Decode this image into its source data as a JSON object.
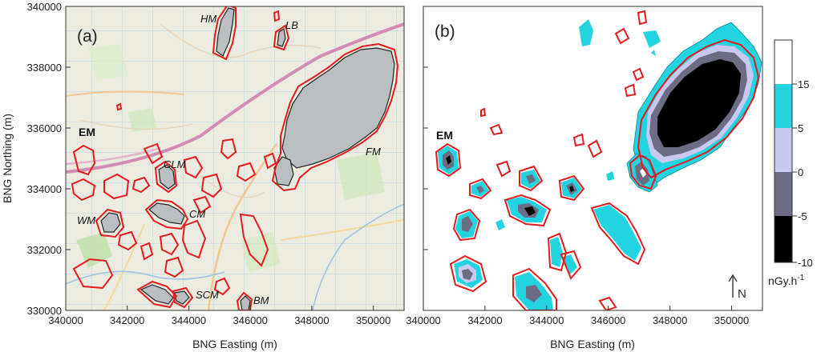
{
  "axes": {
    "x_label": "BNG Easting (m)",
    "y_label": "BNG Northing (m)",
    "x_ticks": [
      "340000",
      "342000",
      "344000",
      "346000",
      "348000",
      "350000"
    ],
    "y_ticks": [
      "330000",
      "332000",
      "334000",
      "336000",
      "338000",
      "340000"
    ]
  },
  "panels": {
    "a": {
      "label": "(a)"
    },
    "b": {
      "label": "(b)"
    }
  },
  "sites_a": {
    "HM": "HM",
    "LB": "LB",
    "EM": "EM",
    "FM": "FM",
    "CLM": "CLM",
    "CM": "CM",
    "WM": "WM",
    "SCM": "SCM",
    "BM": "BM"
  },
  "sites_b": {
    "EM": "EM"
  },
  "colorbar": {
    "ticks": [
      "15",
      "5",
      "0",
      "-5",
      "-10"
    ],
    "unit_base": "nGy.h",
    "unit_exp": "-1"
  },
  "north_arrow": "N",
  "colors": {
    "red_contour": "#e41a1c",
    "cyan_band": "#22d3e0",
    "lavender_band": "#c8c8f0",
    "gray_band": "#6c6c84",
    "black_band": "#000000",
    "site_fill": "#b9bec0"
  }
}
